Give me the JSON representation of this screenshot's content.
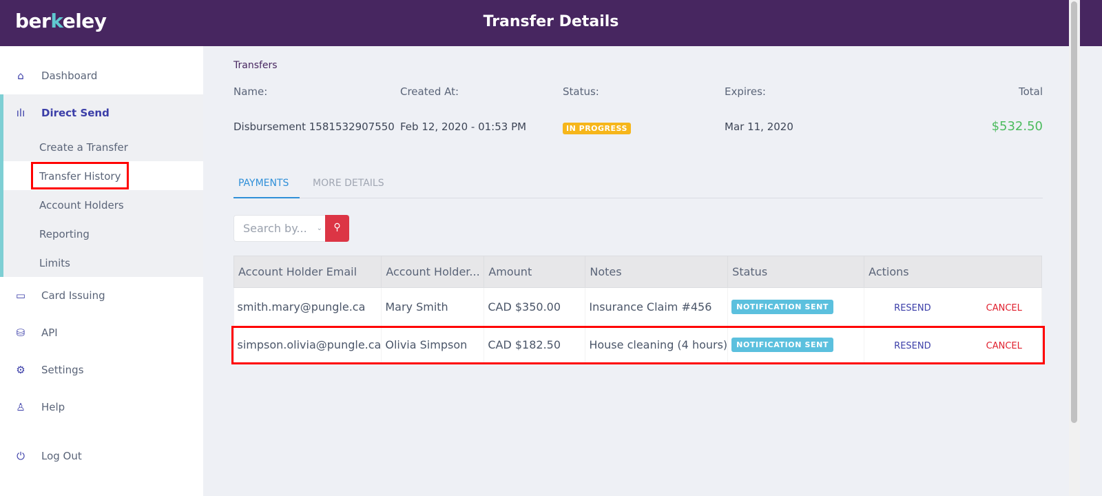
{
  "header": {
    "logo": "berkeley",
    "title": "Transfer Details"
  },
  "sidebar": {
    "items": [
      {
        "label": "Dashboard",
        "icon": "home-icon"
      },
      {
        "label": "Direct Send",
        "icon": "bar-chart-icon"
      },
      {
        "label": "Card Issuing",
        "icon": "card-icon"
      },
      {
        "label": "API",
        "icon": "database-icon"
      },
      {
        "label": "Settings",
        "icon": "gear-icon"
      },
      {
        "label": "Help",
        "icon": "user-icon"
      },
      {
        "label": "Log Out",
        "icon": "power-icon"
      }
    ],
    "sub_items": [
      "Create a Transfer",
      "Transfer History",
      "Account Holders",
      "Reporting",
      "Limits"
    ]
  },
  "breadcrumb": "Transfers",
  "summary": {
    "name_label": "Name:",
    "name": "Disbursement 1581532907550",
    "created_label": "Created At:",
    "created": "Feb 12, 2020 - 01:53 PM",
    "status_label": "Status:",
    "status": "IN PROGRESS",
    "expires_label": "Expires:",
    "expires": "Mar 11, 2020",
    "total_label": "Total",
    "total": "$532.50"
  },
  "tabs": [
    "PAYMENTS",
    "MORE DETAILS"
  ],
  "search": {
    "placeholder": "Search by..."
  },
  "table": {
    "headers": [
      "Account Holder Email",
      "Account Holder...",
      "Amount",
      "Notes",
      "Status",
      "Actions"
    ],
    "rows": [
      {
        "email": "smith.mary@pungle.ca",
        "name": "Mary Smith",
        "amount": "CAD $350.00",
        "notes": "Insurance Claim #456",
        "status": "NOTIFICATION SENT",
        "resend": "RESEND",
        "cancel": "CANCEL"
      },
      {
        "email": "simpson.olivia@pungle.ca",
        "name": "Olivia Simpson",
        "amount": "CAD $182.50",
        "notes": "House cleaning (4 hours)",
        "status": "NOTIFICATION SENT",
        "resend": "RESEND",
        "cancel": "CANCEL"
      }
    ]
  },
  "colors": {
    "header": "#472660",
    "accent": "#3b3ea8",
    "total": "#4cbb5e",
    "highlight": "#ff0000"
  }
}
